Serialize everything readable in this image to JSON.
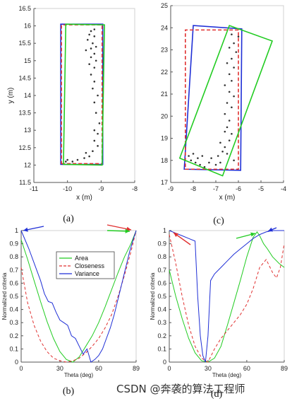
{
  "watermark": "CSDN @奔袭的算法工程师",
  "chart_data": [
    {
      "id": "a",
      "type": "scatter",
      "caption": "(a)",
      "xlabel": "x (m)",
      "ylabel": "y (m)",
      "xlim": [
        -11,
        -8
      ],
      "ylim": [
        11.5,
        16.5
      ],
      "xticks": [
        -11,
        -10,
        -9,
        -8
      ],
      "yticks": [
        11.5,
        12,
        12.5,
        13,
        13.5,
        14,
        14.5,
        15,
        15.5,
        16,
        16.5
      ],
      "points": [
        [
          -9.3,
          15.85
        ],
        [
          -9.2,
          15.9
        ],
        [
          -9.35,
          15.75
        ],
        [
          -9.2,
          15.7
        ],
        [
          -9.4,
          15.6
        ],
        [
          -9.25,
          15.5
        ],
        [
          -9.15,
          15.4
        ],
        [
          -9.3,
          15.35
        ],
        [
          -9.45,
          15.3
        ],
        [
          -9.2,
          15.2
        ],
        [
          -9.3,
          15.1
        ],
        [
          -9.15,
          15.0
        ],
        [
          -9.35,
          14.9
        ],
        [
          -9.2,
          14.8
        ],
        [
          -9.3,
          14.6
        ],
        [
          -9.2,
          14.4
        ],
        [
          -9.25,
          14.2
        ],
        [
          -9.1,
          14.0
        ],
        [
          -9.2,
          13.8
        ],
        [
          -9.15,
          13.5
        ],
        [
          -9.05,
          13.2
        ],
        [
          -9.2,
          13.0
        ],
        [
          -9.1,
          12.9
        ],
        [
          -9.2,
          12.7
        ],
        [
          -9.1,
          12.55
        ],
        [
          -9.25,
          12.4
        ],
        [
          -9.45,
          12.35
        ],
        [
          -9.35,
          12.25
        ],
        [
          -9.7,
          12.15
        ],
        [
          -9.85,
          12.1
        ],
        [
          -9.5,
          12.2
        ],
        [
          -10.05,
          12.1
        ],
        [
          -10.0,
          12.15
        ]
      ],
      "boxes": [
        {
          "color": "#1f2fd6",
          "style": "solid",
          "corners": [
            [
              -10.2,
              12.02
            ],
            [
              -8.95,
              12.02
            ],
            [
              -8.95,
              16.05
            ],
            [
              -10.2,
              16.05
            ]
          ]
        },
        {
          "color": "#e03030",
          "style": "dashed",
          "corners": [
            [
              -10.18,
              12.04
            ],
            [
              -8.97,
              12.04
            ],
            [
              -8.97,
              16.03
            ],
            [
              -10.18,
              16.03
            ]
          ]
        },
        {
          "color": "#22cc22",
          "style": "solid",
          "corners": [
            [
              -10.12,
              12.02
            ],
            [
              -8.97,
              12.0
            ],
            [
              -8.9,
              16.03
            ],
            [
              -10.05,
              16.05
            ]
          ]
        }
      ]
    },
    {
      "id": "c",
      "type": "scatter",
      "caption": "(c)",
      "xlabel": "x (m)",
      "ylabel": "",
      "xlim": [
        -9,
        -4
      ],
      "ylim": [
        17,
        25
      ],
      "xticks": [
        -9,
        -8,
        -7,
        -6,
        -5,
        -4
      ],
      "yticks": [
        17,
        18,
        19,
        20,
        21,
        22,
        23,
        24,
        25
      ],
      "points": [
        [
          -6.3,
          23.7
        ],
        [
          -6.0,
          23.6
        ],
        [
          -6.2,
          23.3
        ],
        [
          -6.4,
          23.1
        ],
        [
          -6.1,
          22.9
        ],
        [
          -6.3,
          22.6
        ],
        [
          -6.5,
          22.4
        ],
        [
          -6.2,
          22.2
        ],
        [
          -6.4,
          21.9
        ],
        [
          -6.3,
          21.6
        ],
        [
          -6.6,
          21.4
        ],
        [
          -6.4,
          21.1
        ],
        [
          -6.2,
          20.9
        ],
        [
          -6.5,
          20.6
        ],
        [
          -6.3,
          20.4
        ],
        [
          -6.6,
          20.1
        ],
        [
          -6.4,
          19.8
        ],
        [
          -6.5,
          19.5
        ],
        [
          -6.3,
          19.2
        ],
        [
          -6.4,
          18.9
        ],
        [
          -6.6,
          18.6
        ],
        [
          -6.5,
          18.3
        ],
        [
          -6.2,
          18.0
        ],
        [
          -6.8,
          17.9
        ],
        [
          -7.0,
          17.8
        ],
        [
          -7.3,
          17.9
        ],
        [
          -7.5,
          17.7
        ],
        [
          -7.7,
          17.8
        ],
        [
          -7.9,
          17.9
        ],
        [
          -8.1,
          18.0
        ],
        [
          -8.2,
          18.2
        ],
        [
          -8.0,
          18.3
        ],
        [
          -7.8,
          18.1
        ],
        [
          -7.6,
          18.2
        ],
        [
          -7.2,
          18.1
        ],
        [
          -6.9,
          18.2
        ],
        [
          -6.7,
          18.4
        ],
        [
          -6.8,
          18.8
        ],
        [
          -6.6,
          19.3
        ]
      ],
      "boxes": [
        {
          "color": "#1f2fd6",
          "style": "solid",
          "corners": [
            [
              -8.4,
              17.6
            ],
            [
              -5.9,
              17.55
            ],
            [
              -5.85,
              23.95
            ],
            [
              -8.0,
              24.1
            ]
          ]
        },
        {
          "color": "#e03030",
          "style": "dashed",
          "corners": [
            [
              -8.35,
              17.6
            ],
            [
              -6.0,
              17.6
            ],
            [
              -6.0,
              23.9
            ],
            [
              -8.35,
              23.9
            ]
          ]
        },
        {
          "color": "#22cc22",
          "style": "solid",
          "corners": [
            [
              -8.6,
              18.1
            ],
            [
              -6.7,
              17.3
            ],
            [
              -4.5,
              23.4
            ],
            [
              -6.4,
              24.1
            ]
          ]
        }
      ]
    },
    {
      "id": "b",
      "type": "line",
      "caption": "(b)",
      "xlabel": "Theta (deg)",
      "ylabel": "Normalized criteria",
      "xlim": [
        0,
        89
      ],
      "ylim": [
        0,
        1
      ],
      "xticks": [
        0,
        30,
        60,
        89
      ],
      "yticks": [
        0,
        0.1,
        0.2,
        0.3,
        0.4,
        0.5,
        0.6,
        0.7,
        0.8,
        0.9,
        1
      ],
      "legend": [
        "Area",
        "Closeness",
        "Variance"
      ],
      "legend_position": "upper-middle",
      "series": [
        {
          "name": "Area",
          "color": "#22cc22",
          "style": "solid",
          "x": [
            0,
            5,
            10,
            15,
            20,
            25,
            30,
            35,
            40,
            45,
            50,
            55,
            60,
            65,
            70,
            75,
            80,
            85,
            89
          ],
          "y": [
            0.93,
            0.78,
            0.62,
            0.46,
            0.31,
            0.18,
            0.08,
            0.02,
            0.0,
            0.04,
            0.12,
            0.2,
            0.3,
            0.42,
            0.55,
            0.68,
            0.8,
            0.9,
            1.0
          ]
        },
        {
          "name": "Closeness",
          "color": "#e03030",
          "style": "dashed",
          "x": [
            0,
            5,
            10,
            15,
            20,
            25,
            30,
            35,
            40,
            45,
            50,
            55,
            60,
            65,
            70,
            75,
            80,
            85,
            89
          ],
          "y": [
            0.72,
            0.45,
            0.28,
            0.16,
            0.08,
            0.03,
            0.01,
            0.0,
            0.01,
            0.03,
            0.07,
            0.12,
            0.18,
            0.26,
            0.36,
            0.5,
            0.66,
            0.84,
            1.0
          ]
        },
        {
          "name": "Variance",
          "color": "#1f2fd6",
          "style": "solid",
          "x": [
            0,
            3,
            6,
            9,
            12,
            15,
            18,
            21,
            24,
            27,
            30,
            33,
            36,
            39,
            42,
            45,
            48,
            51,
            54,
            57,
            60,
            63,
            66,
            69,
            72,
            75,
            78,
            81,
            84,
            87,
            89
          ],
          "y": [
            1.0,
            0.93,
            0.86,
            0.78,
            0.7,
            0.62,
            0.52,
            0.46,
            0.45,
            0.38,
            0.32,
            0.3,
            0.28,
            0.2,
            0.18,
            0.12,
            0.06,
            0.1,
            0.0,
            0.02,
            0.05,
            0.1,
            0.18,
            0.26,
            0.36,
            0.48,
            0.6,
            0.72,
            0.84,
            0.94,
            1.0
          ]
        }
      ]
    },
    {
      "id": "d",
      "type": "line",
      "caption": "(d)",
      "xlabel": "Theta (deg)",
      "ylabel": "Normalized criteria",
      "xlim": [
        0,
        89
      ],
      "ylim": [
        0,
        1
      ],
      "xticks": [
        0,
        30,
        60,
        89
      ],
      "yticks": [
        0,
        0.1,
        0.2,
        0.3,
        0.4,
        0.5,
        0.6,
        0.7,
        0.8,
        0.9,
        1
      ],
      "series": [
        {
          "name": "Area",
          "color": "#22cc22",
          "style": "solid",
          "x": [
            0,
            5,
            10,
            15,
            20,
            25,
            30,
            35,
            40,
            45,
            50,
            55,
            60,
            65,
            68,
            70,
            73,
            76,
            80,
            85,
            89
          ],
          "y": [
            0.7,
            0.5,
            0.33,
            0.18,
            0.07,
            0.01,
            0.0,
            0.03,
            0.12,
            0.28,
            0.45,
            0.62,
            0.8,
            0.95,
            0.99,
            0.96,
            0.9,
            0.86,
            0.8,
            0.75,
            0.72
          ]
        },
        {
          "name": "Closeness",
          "color": "#e03030",
          "style": "dashed",
          "x": [
            0,
            5,
            10,
            15,
            20,
            25,
            30,
            35,
            40,
            45,
            50,
            55,
            60,
            65,
            70,
            75,
            80,
            83,
            86,
            89
          ],
          "y": [
            0.97,
            0.75,
            0.5,
            0.28,
            0.12,
            0.03,
            0.0,
            0.1,
            0.18,
            0.24,
            0.3,
            0.36,
            0.44,
            0.56,
            0.72,
            0.78,
            0.68,
            0.64,
            0.72,
            0.9
          ]
        },
        {
          "name": "Variance",
          "color": "#1f2fd6",
          "style": "solid",
          "x": [
            0,
            5,
            10,
            15,
            20,
            22,
            24,
            26,
            28,
            30,
            32,
            35,
            40,
            45,
            50,
            55,
            60,
            65,
            70,
            75,
            80,
            85,
            89
          ],
          "y": [
            1.0,
            0.98,
            0.96,
            0.94,
            0.92,
            0.5,
            0.2,
            0.05,
            0.0,
            0.2,
            0.62,
            0.67,
            0.72,
            0.77,
            0.82,
            0.86,
            0.9,
            0.94,
            0.97,
            0.99,
            1.0,
            1.0,
            1.0
          ]
        }
      ]
    }
  ]
}
